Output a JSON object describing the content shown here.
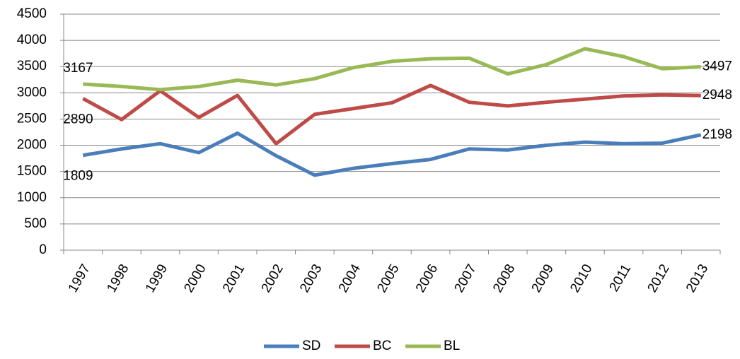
{
  "chart_data": {
    "type": "line",
    "categories": [
      "1997",
      "1998",
      "1999",
      "2000",
      "2001",
      "2002",
      "2003",
      "2004",
      "2005",
      "2006",
      "2007",
      "2008",
      "2009",
      "2010",
      "2011",
      "2012",
      "2013"
    ],
    "series": [
      {
        "name": "SD",
        "color": "#4a7ebb",
        "values": [
          1809,
          1930,
          2030,
          1860,
          2230,
          1800,
          1430,
          1560,
          1650,
          1730,
          1930,
          1910,
          2000,
          2060,
          2030,
          2040,
          2198
        ]
      },
      {
        "name": "BC",
        "color": "#be4b48",
        "values": [
          2890,
          2490,
          3040,
          2530,
          2950,
          2030,
          2590,
          2700,
          2810,
          3140,
          2820,
          2750,
          2820,
          2880,
          2940,
          2960,
          2948
        ]
      },
      {
        "name": "BL",
        "color": "#98b954",
        "values": [
          3167,
          3120,
          3060,
          3120,
          3240,
          3150,
          3270,
          3480,
          3600,
          3650,
          3660,
          3360,
          3540,
          3840,
          3690,
          3460,
          3497
        ]
      }
    ],
    "ylim": [
      0,
      4500
    ],
    "yticks": [
      0,
      500,
      1000,
      1500,
      2000,
      2500,
      3000,
      3500,
      4000,
      4500
    ],
    "grid": true,
    "legend": "bottom",
    "data_labels": "ends"
  }
}
